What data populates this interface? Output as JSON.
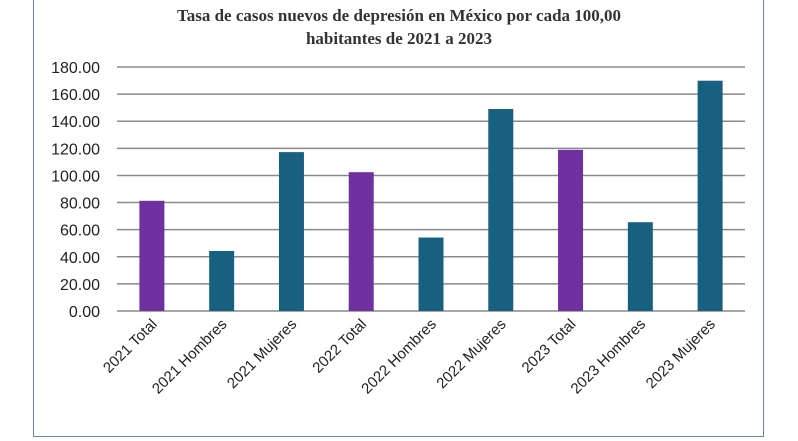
{
  "chart_data": {
    "type": "bar",
    "title_line1": "Tasa de casos nuevos de depresión en México por cada 100,00",
    "title_line2": "habitantes de 2021 a 2023",
    "categories": [
      "2021 Total",
      "2021 Hombres",
      "2021 Mujeres",
      "2022 Total",
      "2022 Hombres",
      "2022 Mujeres",
      "2023 Total",
      "2023 Hombres",
      "2023 Mujeres"
    ],
    "values": [
      81.3,
      44.3,
      117.2,
      102.4,
      54.2,
      149.0,
      118.9,
      65.5,
      169.9
    ],
    "bar_groups": [
      "total",
      "sex",
      "sex",
      "total",
      "sex",
      "sex",
      "total",
      "sex",
      "sex"
    ],
    "colors": {
      "total": "#7030a0",
      "sex": "#17607f"
    },
    "yticks": [
      "0.00",
      "20.00",
      "40.00",
      "60.00",
      "80.00",
      "100.00",
      "120.00",
      "140.00",
      "160.00",
      "180.00"
    ],
    "ylim": [
      0,
      180
    ],
    "xlabel": "",
    "ylabel": "",
    "grid": true
  }
}
